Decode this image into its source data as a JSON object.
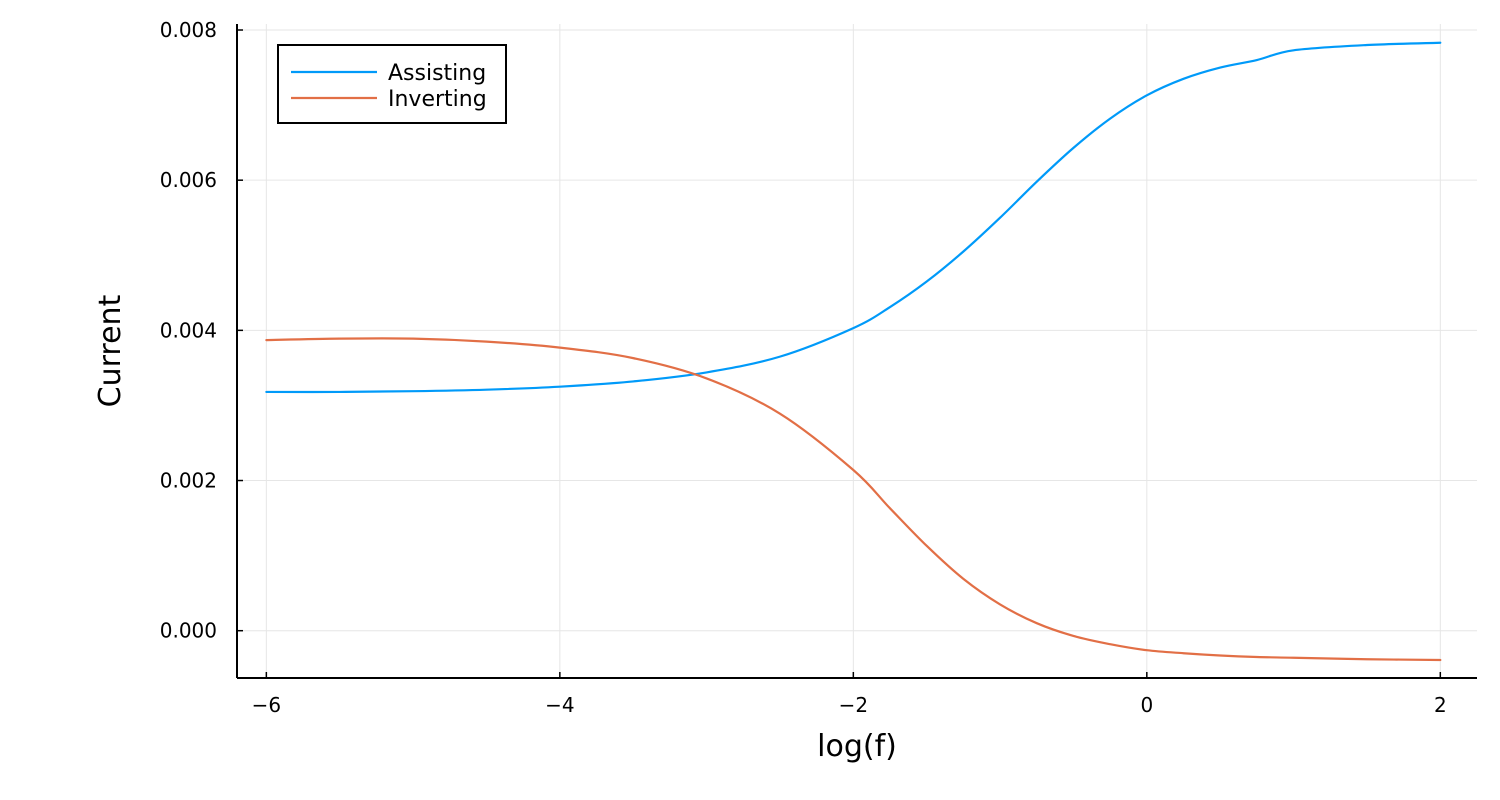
{
  "chart_data": {
    "type": "line",
    "xlabel": "log(f)",
    "ylabel": "Current",
    "xlim": [
      -6.2,
      2.25
    ],
    "ylim": [
      -0.00063,
      0.00808
    ],
    "xticks": [
      -6,
      -4,
      -2,
      0,
      2
    ],
    "xtick_labels": [
      "−6",
      "−4",
      "−2",
      "0",
      "2"
    ],
    "yticks": [
      0.0,
      0.002,
      0.004,
      0.006,
      0.008
    ],
    "ytick_labels": [
      "0.000",
      "0.002",
      "0.004",
      "0.006",
      "0.008"
    ],
    "grid": true,
    "legend_position": "top-left",
    "series": [
      {
        "name": "Assisting",
        "color": "#009af9",
        "x": [
          -6,
          -5.5,
          -5,
          -4.5,
          -4,
          -3.5,
          -3,
          -2.5,
          -2,
          -1.75,
          -1.5,
          -1.25,
          -1,
          -0.75,
          -0.5,
          -0.25,
          0,
          0.25,
          0.5,
          0.75,
          1,
          1.5,
          2
        ],
        "y": [
          0.00318,
          0.00318,
          0.00319,
          0.00321,
          0.00325,
          0.00332,
          0.00344,
          0.00365,
          0.00403,
          0.00431,
          0.00465,
          0.00505,
          0.0055,
          0.00598,
          0.00643,
          0.00682,
          0.00713,
          0.00735,
          0.0075,
          0.0076,
          0.00773,
          0.0078,
          0.00783
        ]
      },
      {
        "name": "Inverting",
        "color": "#e26f46",
        "x": [
          -6,
          -5.5,
          -5,
          -4.5,
          -4,
          -3.5,
          -3,
          -2.5,
          -2,
          -1.75,
          -1.5,
          -1.25,
          -1,
          -0.75,
          -0.5,
          -0.25,
          0,
          0.25,
          0.5,
          0.75,
          1,
          1.5,
          2
        ],
        "y": [
          0.00387,
          0.00389,
          0.00389,
          0.00385,
          0.00377,
          0.00363,
          0.00336,
          0.00289,
          0.00214,
          0.00163,
          0.00113,
          0.00069,
          0.00035,
          0.0001,
          -7e-05,
          -0.00018,
          -0.00026,
          -0.0003,
          -0.00033,
          -0.00035,
          -0.00036,
          -0.00038,
          -0.00039
        ]
      }
    ]
  }
}
